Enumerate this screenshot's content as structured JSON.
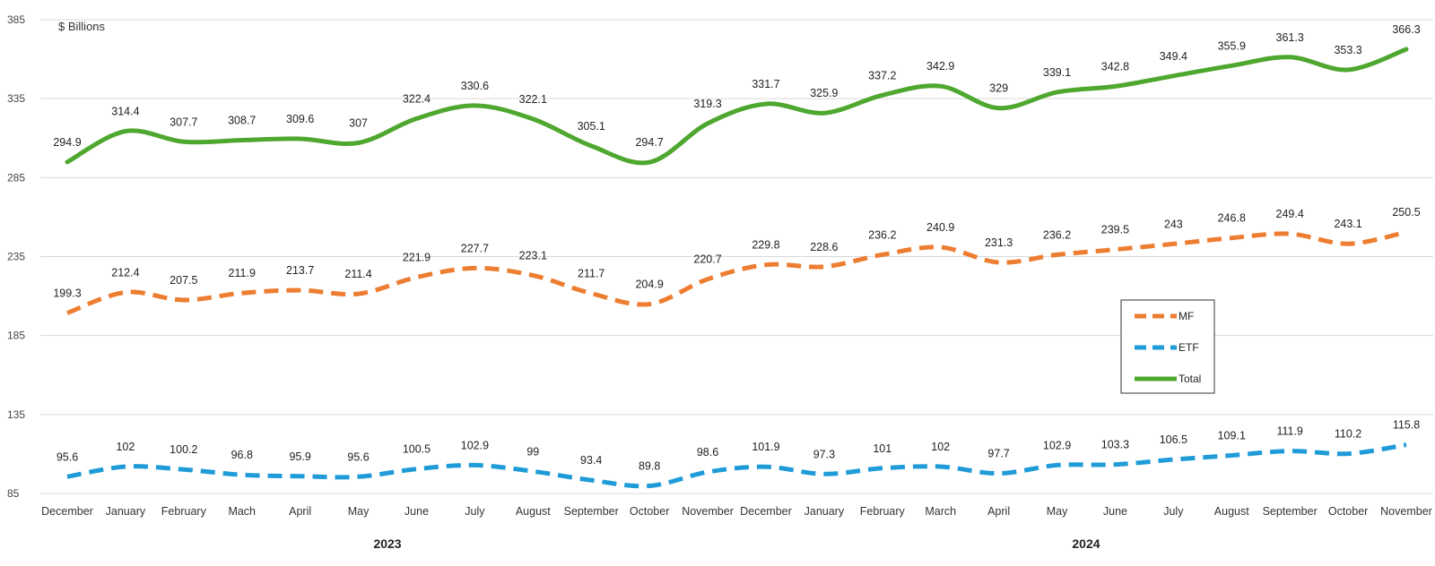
{
  "chart_data": {
    "type": "line",
    "unit_label": "$ Billions",
    "categories": [
      "December",
      "January",
      "February",
      "Mach",
      "April",
      "May",
      "June",
      "July",
      "August",
      "September",
      "October",
      "November",
      "December",
      "January",
      "February",
      "March",
      "April",
      "May",
      "June",
      "July",
      "August",
      "September",
      "October",
      "November"
    ],
    "year_labels": [
      {
        "label": "2023",
        "from_index": 0,
        "to_index": 11
      },
      {
        "label": "2024",
        "from_index": 12,
        "to_index": 23
      }
    ],
    "ylim": [
      85,
      385
    ],
    "yticks": [
      85,
      135,
      185,
      235,
      285,
      335,
      385
    ],
    "grid": true,
    "legend_position": "right",
    "series": [
      {
        "name": "MF",
        "color": "#ED7D31",
        "style": "dashed",
        "values": [
          199.3,
          212.4,
          207.5,
          211.9,
          213.7,
          211.4,
          221.9,
          227.7,
          223.1,
          211.7,
          204.9,
          220.7,
          229.8,
          228.6,
          236.2,
          240.9,
          231.3,
          236.2,
          239.5,
          243.0,
          246.8,
          249.4,
          243.1,
          250.5
        ]
      },
      {
        "name": "ETF",
        "color": "#1F9BD7",
        "style": "dashed",
        "values": [
          95.6,
          102.0,
          100.2,
          96.8,
          95.9,
          95.6,
          100.5,
          102.9,
          99.0,
          93.4,
          89.8,
          98.6,
          101.9,
          97.3,
          101.0,
          102.0,
          97.7,
          102.9,
          103.3,
          106.5,
          109.1,
          111.9,
          110.2,
          115.8
        ]
      },
      {
        "name": "Total",
        "color": "#4EA72E",
        "style": "solid",
        "values": [
          294.9,
          314.4,
          307.7,
          308.7,
          309.6,
          307.0,
          322.4,
          330.6,
          322.1,
          305.1,
          294.7,
          319.3,
          331.7,
          325.9,
          337.2,
          342.9,
          329.0,
          339.1,
          342.8,
          349.4,
          355.9,
          361.3,
          353.3,
          366.3
        ]
      }
    ]
  }
}
